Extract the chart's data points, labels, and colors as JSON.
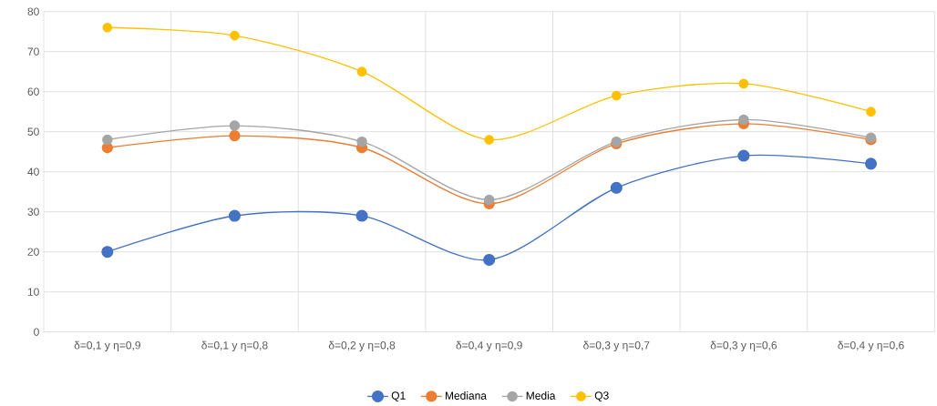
{
  "chart_data": {
    "type": "line",
    "categories": [
      "δ=0,1 y η=0,9",
      "δ=0,1 y η=0,8",
      "δ=0,2 y η=0,8",
      "δ=0,4 y η=0,9",
      "δ=0,3 y η=0,7",
      "δ=0,3 y η=0,6",
      "δ=0,4 y η=0,6"
    ],
    "series": [
      {
        "name": "Q1",
        "color": "#4472c4",
        "values": [
          20,
          29,
          29,
          18,
          36,
          44,
          42
        ]
      },
      {
        "name": "Mediana",
        "color": "#ed7d31",
        "values": [
          46,
          49,
          46,
          32,
          47,
          52,
          48
        ]
      },
      {
        "name": "Media",
        "color": "#a5a5a5",
        "values": [
          48,
          51.5,
          47.5,
          33,
          47.5,
          53,
          48.5
        ]
      },
      {
        "name": "Q3",
        "color": "#ffc000",
        "values": [
          76,
          74,
          65,
          48,
          59,
          62,
          55
        ]
      }
    ],
    "ylim": [
      0,
      80
    ],
    "yticks": [
      0,
      10,
      20,
      30,
      40,
      50,
      60,
      70,
      80
    ],
    "grid": true,
    "legend": "bottom",
    "marker": "circle",
    "line_style": "solid"
  }
}
